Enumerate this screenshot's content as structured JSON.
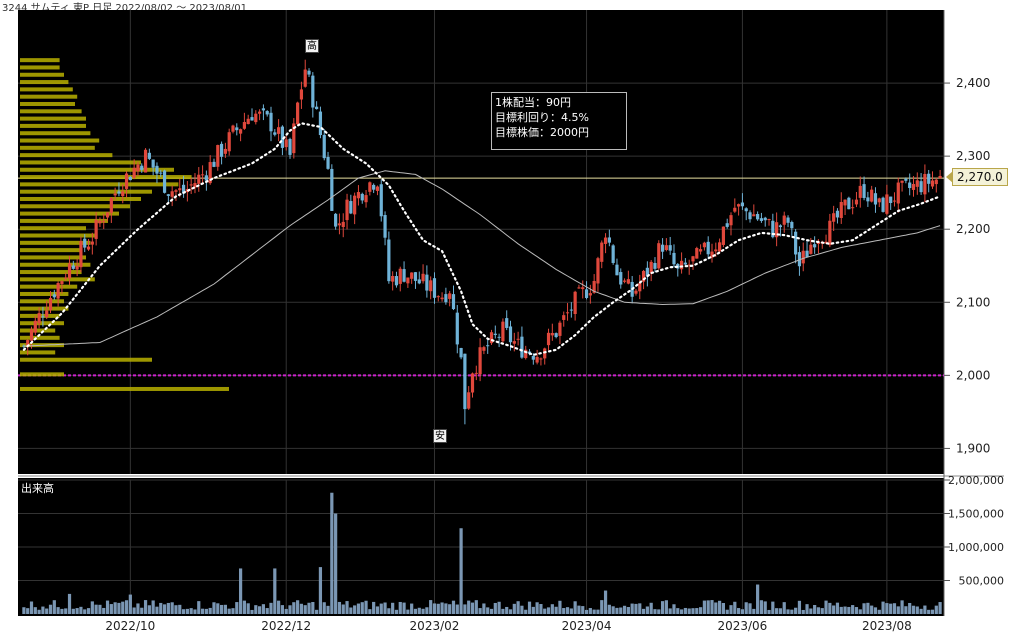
{
  "header": {
    "title": "3244 サムティ 東P  日足 2022/08/02 ～ 2023/08/01"
  },
  "info_box": {
    "line1": "1株配当：90円",
    "line2": "目標利回り：4.5%",
    "line3": "目標株価：2000円"
  },
  "markers": {
    "high": "高",
    "low": "安"
  },
  "last_price_label": "2,270.0",
  "volume_label": "出来高",
  "colors": {
    "background": "#000000",
    "up_candle": "#e0483c",
    "down_candle": "#6fb3d8",
    "ma_short": "#ffffff",
    "ma_long": "#bbbbbb",
    "target_line": "#cc22cc",
    "volume_profile": "#b8b000",
    "volume_bar": "#7b97b4"
  },
  "chart_data": {
    "type": "candlestick",
    "price_axis": {
      "ticks": [
        2400,
        2300,
        2200,
        2100,
        2000,
        1900
      ],
      "tick_labels": [
        "2,400",
        "2,300",
        "2,200",
        "2,100",
        "2,000",
        "1,900"
      ],
      "range": [
        1865,
        2500
      ]
    },
    "volume_axis": {
      "ticks": [
        2000000,
        1500000,
        1000000,
        500000
      ],
      "tick_labels": [
        "2,000,000",
        "1,500,000",
        "1,000,000",
        "500,000"
      ],
      "range": [
        0,
        2000000
      ]
    },
    "x_tick_labels": [
      "2022/10",
      "2022/12",
      "2023/02",
      "2023/04",
      "2023/06",
      "2023/08"
    ],
    "x_tick_positions": [
      28,
      69,
      108,
      148,
      189,
      227
    ],
    "num_days": 242,
    "high": 2432,
    "low": 1933,
    "last": 2270,
    "target_price": 2000,
    "resistance_line": 2270,
    "price_path": [
      [
        0,
        2040
      ],
      [
        6,
        2100
      ],
      [
        12,
        2150
      ],
      [
        18,
        2190
      ],
      [
        25,
        2260
      ],
      [
        32,
        2300
      ],
      [
        38,
        2255
      ],
      [
        42,
        2250
      ],
      [
        48,
        2280
      ],
      [
        55,
        2330
      ],
      [
        60,
        2360
      ],
      [
        65,
        2345
      ],
      [
        70,
        2300
      ],
      [
        72,
        2370
      ],
      [
        74,
        2420
      ],
      [
        76,
        2380
      ],
      [
        78,
        2330
      ],
      [
        80,
        2280
      ],
      [
        82,
        2200
      ],
      [
        85,
        2230
      ],
      [
        90,
        2260
      ],
      [
        93,
        2270
      ],
      [
        96,
        2130
      ],
      [
        100,
        2140
      ],
      [
        105,
        2125
      ],
      [
        110,
        2110
      ],
      [
        112,
        2120
      ],
      [
        115,
        2020
      ],
      [
        116,
        1960
      ],
      [
        118,
        2010
      ],
      [
        122,
        2040
      ],
      [
        126,
        2060
      ],
      [
        130,
        2040
      ],
      [
        135,
        2030
      ],
      [
        140,
        2060
      ],
      [
        145,
        2100
      ],
      [
        150,
        2130
      ],
      [
        153,
        2200
      ],
      [
        156,
        2140
      ],
      [
        160,
        2110
      ],
      [
        165,
        2150
      ],
      [
        168,
        2180
      ],
      [
        172,
        2140
      ],
      [
        177,
        2160
      ],
      [
        182,
        2180
      ],
      [
        187,
        2230
      ],
      [
        192,
        2220
      ],
      [
        197,
        2200
      ],
      [
        201,
        2210
      ],
      [
        204,
        2150
      ],
      [
        208,
        2190
      ],
      [
        212,
        2200
      ],
      [
        216,
        2230
      ],
      [
        221,
        2255
      ],
      [
        225,
        2230
      ],
      [
        230,
        2250
      ],
      [
        235,
        2260
      ],
      [
        241,
        2270
      ]
    ],
    "ma_short_path": [
      [
        0,
        2035
      ],
      [
        10,
        2085
      ],
      [
        20,
        2150
      ],
      [
        30,
        2200
      ],
      [
        40,
        2245
      ],
      [
        50,
        2270
      ],
      [
        60,
        2290
      ],
      [
        66,
        2310
      ],
      [
        70,
        2335
      ],
      [
        73,
        2345
      ],
      [
        78,
        2340
      ],
      [
        84,
        2310
      ],
      [
        90,
        2290
      ],
      [
        96,
        2260
      ],
      [
        100,
        2225
      ],
      [
        105,
        2185
      ],
      [
        110,
        2170
      ],
      [
        115,
        2115
      ],
      [
        118,
        2070
      ],
      [
        122,
        2050
      ],
      [
        128,
        2040
      ],
      [
        134,
        2028
      ],
      [
        140,
        2035
      ],
      [
        145,
        2055
      ],
      [
        150,
        2080
      ],
      [
        155,
        2100
      ],
      [
        160,
        2118
      ],
      [
        165,
        2140
      ],
      [
        170,
        2148
      ],
      [
        176,
        2150
      ],
      [
        182,
        2165
      ],
      [
        188,
        2185
      ],
      [
        194,
        2195
      ],
      [
        200,
        2192
      ],
      [
        206,
        2185
      ],
      [
        212,
        2180
      ],
      [
        218,
        2185
      ],
      [
        224,
        2205
      ],
      [
        230,
        2225
      ],
      [
        236,
        2235
      ],
      [
        241,
        2245
      ]
    ],
    "ma_long_path": [
      [
        0,
        2040
      ],
      [
        20,
        2045
      ],
      [
        35,
        2080
      ],
      [
        50,
        2125
      ],
      [
        60,
        2165
      ],
      [
        70,
        2205
      ],
      [
        80,
        2240
      ],
      [
        88,
        2270
      ],
      [
        95,
        2280
      ],
      [
        103,
        2275
      ],
      [
        110,
        2255
      ],
      [
        120,
        2220
      ],
      [
        130,
        2180
      ],
      [
        140,
        2145
      ],
      [
        150,
        2115
      ],
      [
        158,
        2100
      ],
      [
        168,
        2097
      ],
      [
        176,
        2098
      ],
      [
        185,
        2115
      ],
      [
        195,
        2140
      ],
      [
        205,
        2160
      ],
      [
        215,
        2175
      ],
      [
        225,
        2185
      ],
      [
        235,
        2195
      ],
      [
        241,
        2205
      ]
    ],
    "volume_spikes": [
      [
        81,
        1810000
      ],
      [
        82,
        1500000
      ],
      [
        115,
        1280000
      ],
      [
        78,
        700000
      ],
      [
        66,
        680000
      ],
      [
        57,
        680000
      ],
      [
        193,
        440000
      ],
      [
        153,
        350000
      ],
      [
        12,
        300000
      ],
      [
        28,
        290000
      ]
    ],
    "volume_profile": [
      [
        2430,
        0.18
      ],
      [
        2420,
        0.18
      ],
      [
        2410,
        0.2
      ],
      [
        2400,
        0.22
      ],
      [
        2390,
        0.24
      ],
      [
        2380,
        0.26
      ],
      [
        2370,
        0.25
      ],
      [
        2360,
        0.28
      ],
      [
        2350,
        0.3
      ],
      [
        2340,
        0.3
      ],
      [
        2330,
        0.32
      ],
      [
        2320,
        0.36
      ],
      [
        2310,
        0.34
      ],
      [
        2300,
        0.42
      ],
      [
        2290,
        0.55
      ],
      [
        2280,
        0.7
      ],
      [
        2270,
        0.78
      ],
      [
        2260,
        0.72
      ],
      [
        2250,
        0.6
      ],
      [
        2240,
        0.55
      ],
      [
        2230,
        0.5
      ],
      [
        2220,
        0.45
      ],
      [
        2210,
        0.4
      ],
      [
        2200,
        0.3
      ],
      [
        2190,
        0.34
      ],
      [
        2180,
        0.32
      ],
      [
        2170,
        0.28
      ],
      [
        2160,
        0.3
      ],
      [
        2150,
        0.32
      ],
      [
        2140,
        0.28
      ],
      [
        2130,
        0.34
      ],
      [
        2120,
        0.26
      ],
      [
        2110,
        0.22
      ],
      [
        2100,
        0.2
      ],
      [
        2090,
        0.22
      ],
      [
        2080,
        0.18
      ],
      [
        2070,
        0.2
      ],
      [
        2060,
        0.16
      ],
      [
        2050,
        0.18
      ],
      [
        2040,
        0.2
      ],
      [
        2030,
        0.16
      ],
      [
        2020,
        0.6
      ],
      [
        2000,
        0.2
      ],
      [
        1980,
        0.95
      ]
    ]
  }
}
